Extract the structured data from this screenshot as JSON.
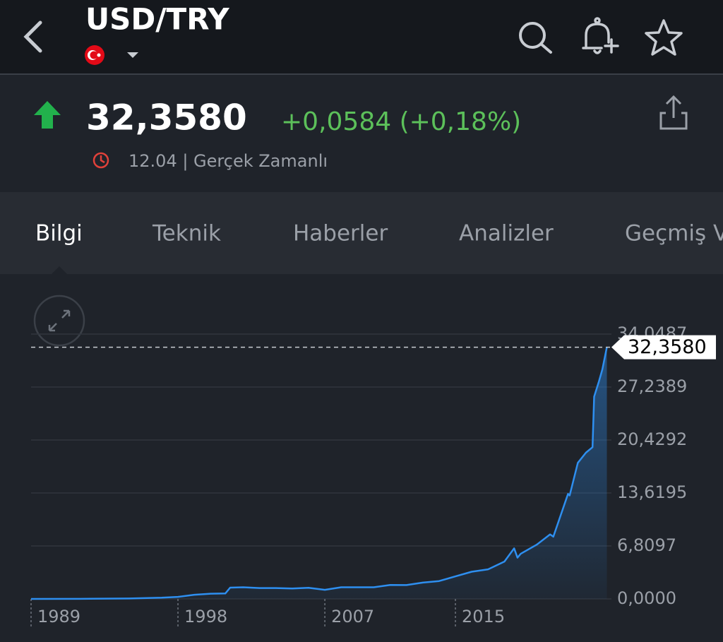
{
  "header": {
    "title": "USD/TRY"
  },
  "quote": {
    "price": "32,3580",
    "change": "+0,0584 (+0,18%)",
    "time": "12.04 | Gerçek Zamanlı"
  },
  "tabs": [
    "Bilgi",
    "Teknik",
    "Haberler",
    "Analizler",
    "Geçmiş V"
  ],
  "chart_data": {
    "type": "line",
    "color": "#2e8ff0",
    "x": [
      1989,
      1992,
      1995,
      1997,
      1998,
      1999,
      2000,
      2000.9,
      2001.2,
      2002,
      2003,
      2004,
      2005,
      2006,
      2007,
      2008,
      2009,
      2010,
      2011,
      2012,
      2013,
      2014,
      2015,
      2016,
      2017,
      2018,
      2018.6,
      2018.8,
      2019,
      2020,
      2020.8,
      2021,
      2021.9,
      2022,
      2022.5,
      2023,
      2023.4,
      2023.5,
      2023.8,
      2024,
      2024.28
    ],
    "values": [
      0.002,
      0.01,
      0.05,
      0.15,
      0.26,
      0.54,
      0.67,
      0.7,
      1.45,
      1.5,
      1.4,
      1.4,
      1.34,
      1.43,
      1.17,
      1.5,
      1.5,
      1.5,
      1.8,
      1.78,
      2.1,
      2.3,
      2.9,
      3.5,
      3.8,
      4.8,
      6.5,
      5.3,
      5.8,
      7.0,
      8.3,
      8.0,
      13.5,
      13.3,
      17.5,
      18.8,
      19.5,
      26,
      28,
      29.5,
      32.358
    ],
    "xlim": [
      1989,
      2024.3
    ],
    "xticks": [
      1989,
      1998,
      2007,
      2015
    ],
    "ylim": [
      0,
      34.0487
    ],
    "yticks": [
      {
        "value": 0,
        "label": "0,0000"
      },
      {
        "value": 6.8097,
        "label": "6,8097"
      },
      {
        "value": 13.6195,
        "label": "13,6195"
      },
      {
        "value": 20.4292,
        "label": "20,4292"
      },
      {
        "value": 27.2389,
        "label": "27,2389"
      },
      {
        "value": 34.0487,
        "label": "34,0487"
      }
    ],
    "grid": true
  }
}
